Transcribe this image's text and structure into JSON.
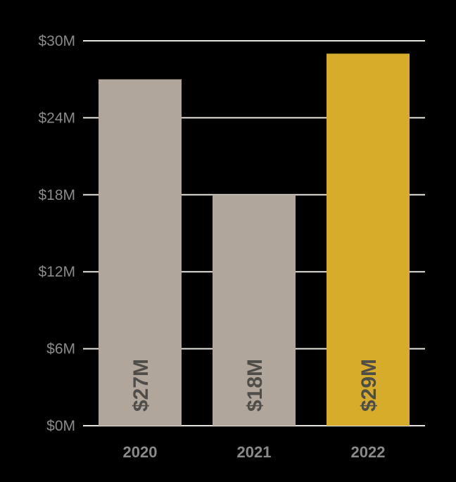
{
  "chart_data": {
    "type": "bar",
    "title": "",
    "xlabel": "",
    "ylabel": "",
    "categories": [
      "2020",
      "2021",
      "2022"
    ],
    "values": [
      27,
      18,
      29
    ],
    "data_labels": [
      "$27M",
      "$18M",
      "$29M"
    ],
    "yticks": [
      0,
      6,
      12,
      18,
      24,
      30
    ],
    "ytick_labels": [
      "$0M",
      "$6M",
      "$12M",
      "$18M",
      "$24M",
      "$30M"
    ],
    "ylim": [
      0,
      30
    ],
    "grid": true,
    "bar_colors": [
      "#b1a69b",
      "#b1a69b",
      "#d6ac2a"
    ],
    "background": "#000000",
    "gridline_color": "#e8e4de"
  }
}
